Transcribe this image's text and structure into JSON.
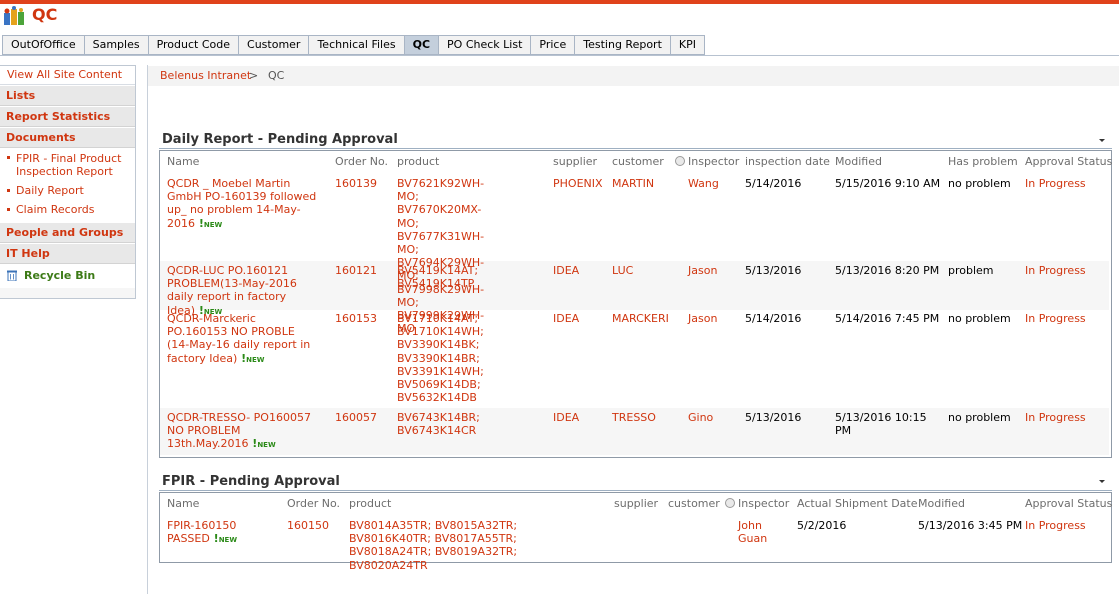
{
  "site": {
    "title": "QC"
  },
  "tabs": [
    "OutOfOffice",
    "Samples",
    "Product Code",
    "Customer",
    "Technical Files",
    "QC",
    "PO Check List",
    "Price",
    "Testing Report",
    "KPI"
  ],
  "active_tab": "QC",
  "nav": {
    "view_all": "View All Site Content",
    "lists": "Lists",
    "report_statistics": "Report Statistics",
    "documents": "Documents",
    "doc_items": [
      "FPIR - Final Product Inspection Report",
      "Daily Report",
      "Claim Records"
    ],
    "people_groups": "People and Groups",
    "it_help": "IT Help",
    "recycle_bin": "Recycle Bin"
  },
  "breadcrumb": {
    "root": "Belenus Intranet",
    "sep": ">",
    "current": "QC"
  },
  "daily": {
    "title": "Daily Report - Pending Approval",
    "columns": [
      "Name",
      "Order No.",
      "product",
      "supplier",
      "customer",
      "Inspector",
      "inspection date",
      "Modified",
      "Has problem",
      "Approval Status"
    ],
    "rows": [
      {
        "name": "QCDR _ Moebel Martin GmbH PO-160139 followed up_ no problem 14-May-2016",
        "order": "160139",
        "product": "BV7621K92WH-MO; BV7670K20MX-MO; BV7677K31WH-MO; BV7694K29WH-MO; BV7998K29WH-MO; BV7999K29WH-MO",
        "supplier": "PHOENIX",
        "customer": "MARTIN",
        "inspector": "Wang",
        "date": "5/14/2016",
        "modified": "5/15/2016 9:10 AM",
        "problem": "no problem",
        "status": "In Progress"
      },
      {
        "name": "QCDR-LUC PO.160121 PROBLEM(13-May-2016 daily report in factory Idea)",
        "order": "160121",
        "product": "BV5419K14AT; BV5419K14TP",
        "supplier": "IDEA",
        "customer": "LUC",
        "inspector": "Jason",
        "date": "5/13/2016",
        "modified": "5/13/2016 8:20 PM",
        "problem": "problem",
        "status": "In Progress"
      },
      {
        "name": "QCDR-Marckeric PO.160153 NO PROBLE (14-May-16 daily report in factory Idea)",
        "order": "160153",
        "product": "BV1710K14AT; BV1710K14WH; BV3390K14BK; BV3390K14BR; BV3391K14WH; BV5069K14DB; BV5632K14DB",
        "supplier": "IDEA",
        "customer": "MARCKERI",
        "inspector": "Jason",
        "date": "5/14/2016",
        "modified": "5/14/2016 7:45 PM",
        "problem": "no problem",
        "status": "In Progress"
      },
      {
        "name": "QCDR-TRESSO- PO160057 NO PROBLEM 13th.May.2016",
        "order": "160057",
        "product": "BV6743K14BR; BV6743K14CR",
        "supplier": "IDEA",
        "customer": "TRESSO",
        "inspector": "Gino",
        "date": "5/13/2016",
        "modified": "5/13/2016 10:15 PM",
        "problem": "no problem",
        "status": "In Progress"
      }
    ]
  },
  "fpir": {
    "title": "FPIR - Pending Approval",
    "columns": [
      "Name",
      "Order No.",
      "product",
      "supplier",
      "customer",
      "Inspector",
      "Actual Shipment Date",
      "Modified",
      "Approval Status"
    ],
    "rows": [
      {
        "name": "FPIR-160150 PASSED",
        "order": "160150",
        "product": "BV8014A35TR; BV8015A32TR; BV8016K40TR; BV8017A55TR; BV8018A24TR; BV8019A32TR; BV8020A24TR",
        "supplier": "",
        "customer": "",
        "inspector": "John Guan",
        "shipment": "5/2/2016",
        "modified": "5/13/2016 3:45 PM",
        "status": "In Progress"
      }
    ]
  },
  "new_label": "NEW",
  "colors": {
    "accent": "#d03610",
    "link_green": "#2b8a18",
    "top_bar": "#e0421b"
  }
}
